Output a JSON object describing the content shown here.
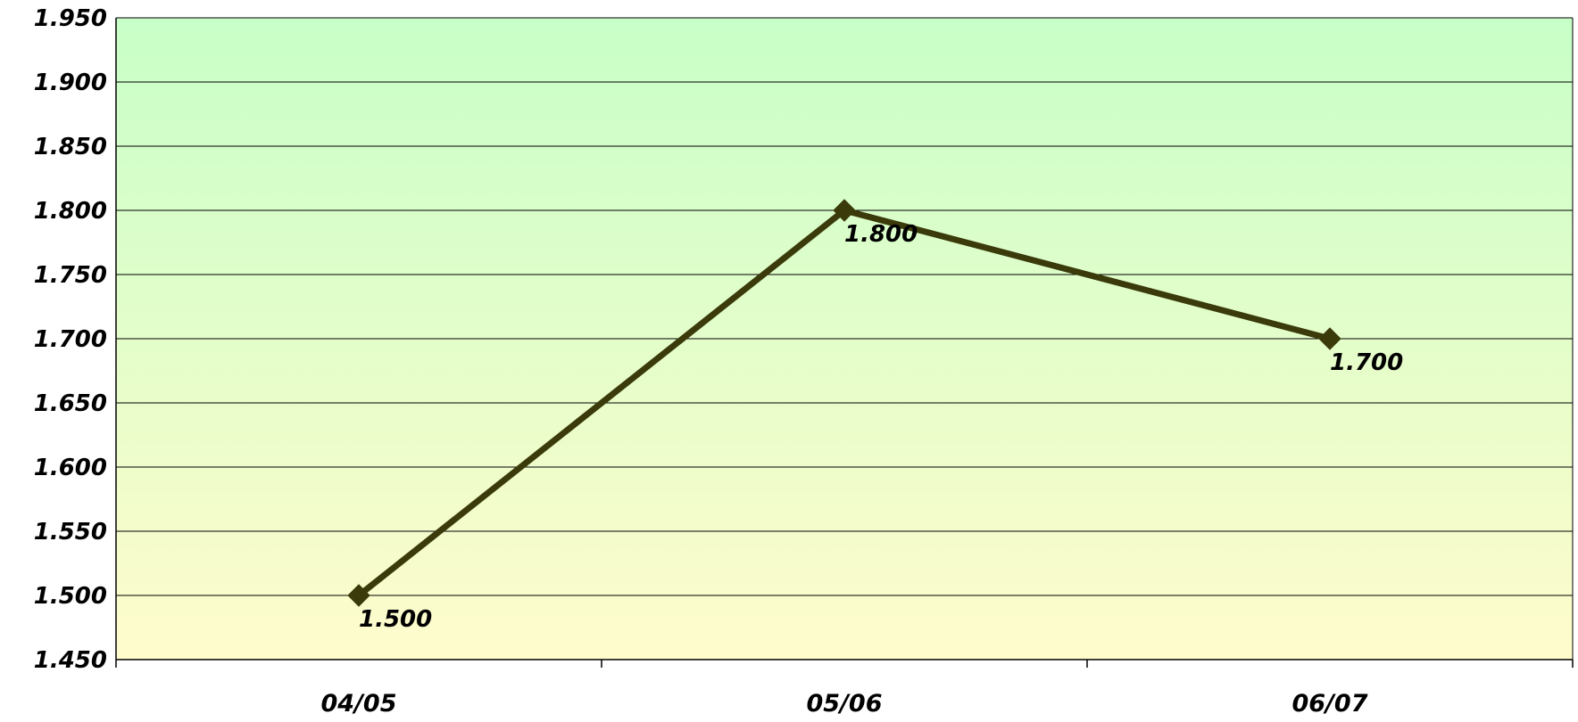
{
  "chart_data": {
    "type": "line",
    "title": "",
    "xlabel": "",
    "ylabel": "",
    "categories": [
      "04/05",
      "05/06",
      "06/07"
    ],
    "series": [
      {
        "values": [
          1.5,
          1.8,
          1.7
        ],
        "data_labels": [
          "1.500",
          "1.800",
          "1.700"
        ]
      }
    ],
    "ylim": [
      1.45,
      1.95
    ],
    "yticks": [
      1.45,
      1.5,
      1.55,
      1.6,
      1.65,
      1.7,
      1.75,
      1.8,
      1.85,
      1.9,
      1.95
    ],
    "ytick_labels": [
      "1.450",
      "1.500",
      "1.550",
      "1.600",
      "1.650",
      "1.700",
      "1.750",
      "1.800",
      "1.850",
      "1.900",
      "1.950"
    ],
    "grid": true,
    "legend": "none",
    "marker": "diamond",
    "colors": {
      "line": "#3a3a0a",
      "background_top": "#c8ffc8",
      "background_bottom": "#fffccc",
      "gridline": "#000000",
      "text": "#000000"
    }
  }
}
